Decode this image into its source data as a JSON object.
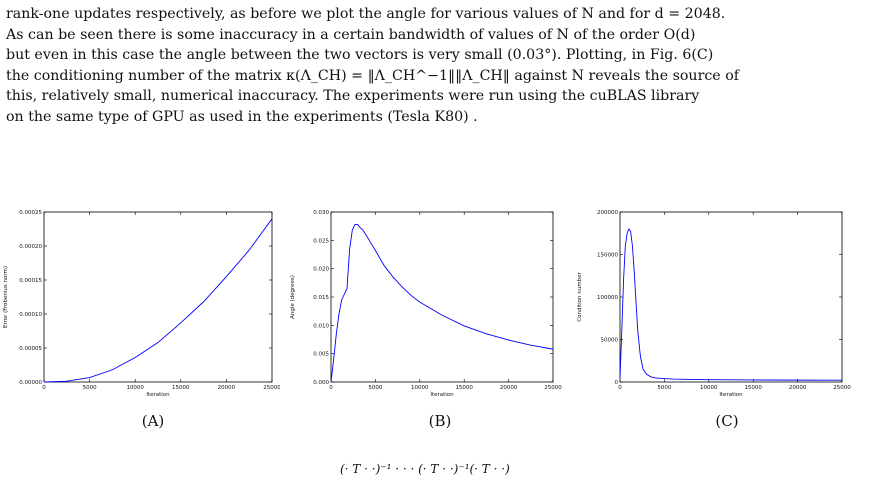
{
  "paragraph": {
    "lines": [
      "rank-one updates respectively, as before we plot the angle for various values of N and for d = 2048.",
      "As can be seen there is some inaccuracy in a certain bandwidth of values of N of the order O(d)",
      "but even in this case the angle between the two vectors is very small (0.03°). Plotting, in Fig. 6(C)",
      "the conditioning number of the matrix κ(Λ_CH) = ‖Λ_CH^−1‖‖Λ_CH‖ against N reveals the source of",
      "this, relatively small, numerical inaccuracy. The experiments were run using the cuBLAS library",
      "on the same type of GPU as used in the experiments (Tesla K80) ."
    ]
  },
  "captions": [
    "(A)",
    "(B)",
    "(C)"
  ],
  "bottom_formula": "(· T · ·)⁻¹ · · · (· T · ·)⁻¹(· T · ·)",
  "chart_data": [
    {
      "type": "line",
      "xlabel": "Iteration",
      "ylabel": "Error (Frobenius norm)",
      "xlim": [
        0,
        25000
      ],
      "ylim": [
        0,
        0.00025
      ],
      "xticks": [
        "0",
        "5000",
        "10000",
        "15000",
        "20000",
        "25000"
      ],
      "yticks": [
        "0.00000",
        "0.00005",
        "0.00010",
        "0.00015",
        "0.00020",
        "0.00025"
      ],
      "color": "#0000ff",
      "x": [
        0,
        2500,
        5000,
        7500,
        10000,
        12500,
        15000,
        17500,
        20000,
        22500,
        25000
      ],
      "y": [
        0,
        1.2e-06,
        6.5e-06,
        1.8e-05,
        3.6e-05,
        5.8e-05,
        8.7e-05,
        0.000118,
        0.000155,
        0.000194,
        0.00024
      ]
    },
    {
      "type": "line",
      "xlabel": "Iteration",
      "ylabel": "Angle (degrees)",
      "xlim": [
        0,
        25000
      ],
      "ylim": [
        0,
        0.03
      ],
      "xticks": [
        "0",
        "5000",
        "10000",
        "15000",
        "20000",
        "25000"
      ],
      "yticks": [
        "0.000",
        "0.005",
        "0.010",
        "0.015",
        "0.020",
        "0.025",
        "0.030"
      ],
      "color": "#0000ff",
      "x": [
        0,
        300,
        600,
        900,
        1200,
        1500,
        1800,
        2100,
        2400,
        2700,
        3000,
        3300,
        3600,
        4000,
        4500,
        5000,
        6000,
        7000,
        8000,
        9000,
        10000,
        12500,
        15000,
        17500,
        20000,
        22500,
        25000
      ],
      "y": [
        0,
        0.004,
        0.0085,
        0.012,
        0.0145,
        0.0155,
        0.0165,
        0.0235,
        0.0268,
        0.0278,
        0.0278,
        0.0272,
        0.0268,
        0.0258,
        0.0245,
        0.0232,
        0.0205,
        0.0185,
        0.0168,
        0.0153,
        0.0141,
        0.0118,
        0.0099,
        0.0085,
        0.0074,
        0.0065,
        0.0058
      ]
    },
    {
      "type": "line",
      "xlabel": "Iteration",
      "ylabel": "Condition number",
      "xlim": [
        0,
        25000
      ],
      "ylim": [
        0,
        200000
      ],
      "xticks": [
        "0",
        "5000",
        "10000",
        "15000",
        "20000",
        "25000"
      ],
      "yticks": [
        "0",
        "50000",
        "100000",
        "150000",
        "200000"
      ],
      "color": "#0000ff",
      "x": [
        0,
        200,
        400,
        600,
        800,
        1000,
        1200,
        1400,
        1600,
        1800,
        2000,
        2300,
        2600,
        3000,
        3500,
        4000,
        5000,
        6000,
        8000,
        10000,
        15000,
        20000,
        25000
      ],
      "y": [
        5000,
        60000,
        120000,
        160000,
        175000,
        180000,
        177000,
        160000,
        130000,
        95000,
        60000,
        30000,
        15000,
        9000,
        6000,
        4800,
        4000,
        3500,
        3000,
        2700,
        2400,
        2200,
        2100
      ]
    }
  ]
}
